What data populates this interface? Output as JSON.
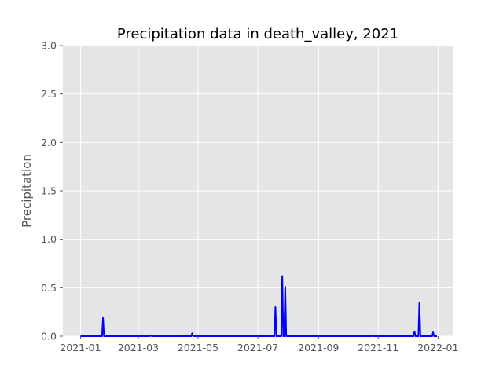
{
  "chart_data": {
    "type": "line",
    "title": "Precipitation data in death_valley, 2021",
    "xlabel": "",
    "ylabel": "Precipitation",
    "ylim": [
      0,
      3.0
    ],
    "xlim": [
      "2020-12-14",
      "2022-01-16"
    ],
    "x_ticks": [
      "2021-01",
      "2021-03",
      "2021-05",
      "2021-07",
      "2021-09",
      "2021-11",
      "2022-01"
    ],
    "y_ticks": [
      "0.0",
      "0.5",
      "1.0",
      "1.5",
      "2.0",
      "2.5",
      "3.0"
    ],
    "grid": true,
    "style": "ggplot",
    "line_color": "#0000ff",
    "plot_background": "#e5e5e5",
    "grid_color": "#ffffff",
    "series": [
      {
        "x": [
          "2021-01-01",
          "2021-01-23",
          "2021-01-24",
          "2021-01-25",
          "2021-03-11",
          "2021-03-12",
          "2021-03-13",
          "2021-03-14",
          "2021-03-15",
          "2021-04-24",
          "2021-04-25",
          "2021-04-26",
          "2021-07-18",
          "2021-07-19",
          "2021-07-20",
          "2021-07-25",
          "2021-07-26",
          "2021-07-27",
          "2021-07-28",
          "2021-07-29",
          "2021-07-30",
          "2021-10-25",
          "2021-10-26",
          "2021-10-27",
          "2021-12-07",
          "2021-12-08",
          "2021-12-09",
          "2021-12-12",
          "2021-12-13",
          "2021-12-14",
          "2021-12-26",
          "2021-12-27",
          "2021-12-28",
          "2021-12-31"
        ],
        "values": [
          0,
          0,
          0.19,
          0,
          0,
          0.01,
          0,
          0.01,
          0,
          0,
          0.03,
          0,
          0,
          0.3,
          0,
          0,
          0.62,
          0,
          0,
          0.51,
          0,
          0,
          0.01,
          0,
          0,
          0.05,
          0,
          0,
          0.35,
          0,
          0,
          0.04,
          0,
          0
        ]
      }
    ]
  }
}
